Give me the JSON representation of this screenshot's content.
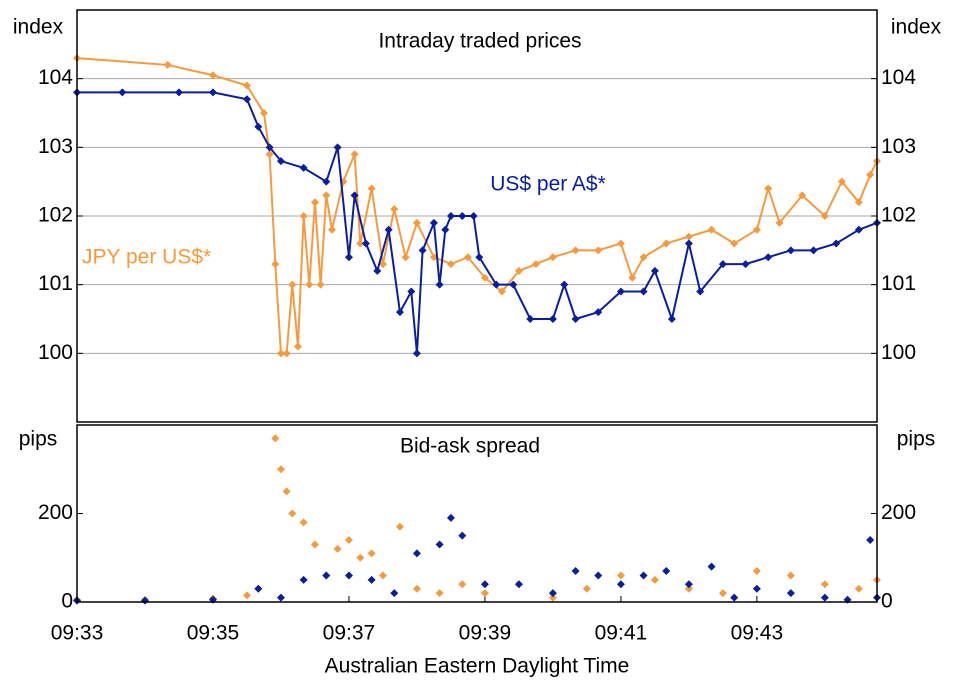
{
  "chart_data": [
    {
      "type": "line",
      "title": "Intraday traded prices",
      "ylabel": "index",
      "xlim": [
        "09:33",
        "09:44:46"
      ],
      "ylim": [
        99,
        105
      ],
      "yticks": [
        100,
        101,
        102,
        103,
        104
      ],
      "grid": true,
      "series": [
        {
          "name": "JPY per US$*",
          "color": "#f79a3e",
          "x": [
            "09:33:00",
            "09:34:20",
            "09:35:00",
            "09:35:30",
            "09:35:45",
            "09:35:50",
            "09:35:55",
            "09:36:00",
            "09:36:05",
            "09:36:10",
            "09:36:15",
            "09:36:20",
            "09:36:25",
            "09:36:30",
            "09:36:35",
            "09:36:40",
            "09:36:45",
            "09:36:55",
            "09:37:05",
            "09:37:10",
            "09:37:20",
            "09:37:30",
            "09:37:40",
            "09:37:50",
            "09:38:00",
            "09:38:15",
            "09:38:30",
            "09:38:45",
            "09:39:00",
            "09:39:15",
            "09:39:30",
            "09:39:45",
            "09:40:00",
            "09:40:20",
            "09:40:40",
            "09:41:00",
            "09:41:10",
            "09:41:20",
            "09:41:40",
            "09:42:00",
            "09:42:20",
            "09:42:40",
            "09:43:00",
            "09:43:10",
            "09:43:20",
            "09:43:40",
            "09:44:00",
            "09:44:15",
            "09:44:30",
            "09:44:40",
            "09:44:46"
          ],
          "values": [
            104.3,
            104.2,
            104.05,
            103.9,
            103.5,
            102.9,
            101.3,
            100.0,
            100.0,
            101.0,
            100.1,
            102.0,
            101.0,
            102.2,
            101.0,
            102.3,
            101.8,
            102.5,
            102.9,
            101.6,
            102.4,
            101.3,
            102.1,
            101.4,
            101.9,
            101.4,
            101.3,
            101.4,
            101.1,
            100.9,
            101.2,
            101.3,
            101.4,
            101.5,
            101.5,
            101.6,
            101.1,
            101.4,
            101.6,
            101.7,
            101.8,
            101.6,
            101.8,
            102.4,
            101.9,
            102.3,
            102.0,
            102.5,
            102.2,
            102.6,
            102.8
          ]
        },
        {
          "name": "US$ per A$*",
          "color": "#0a1f9e",
          "x": [
            "09:33:00",
            "09:33:40",
            "09:34:30",
            "09:35:00",
            "09:35:30",
            "09:35:40",
            "09:35:50",
            "09:36:00",
            "09:36:20",
            "09:36:40",
            "09:36:50",
            "09:37:00",
            "09:37:05",
            "09:37:15",
            "09:37:25",
            "09:37:35",
            "09:37:45",
            "09:37:55",
            "09:38:00",
            "09:38:05",
            "09:38:15",
            "09:38:20",
            "09:38:25",
            "09:38:30",
            "09:38:40",
            "09:38:50",
            "09:38:55",
            "09:39:10",
            "09:39:25",
            "09:39:40",
            "09:40:00",
            "09:40:10",
            "09:40:20",
            "09:40:40",
            "09:41:00",
            "09:41:20",
            "09:41:30",
            "09:41:45",
            "09:42:00",
            "09:42:10",
            "09:42:30",
            "09:42:50",
            "09:43:10",
            "09:43:30",
            "09:43:50",
            "09:44:10",
            "09:44:30",
            "09:44:46"
          ],
          "values": [
            103.8,
            103.8,
            103.8,
            103.8,
            103.7,
            103.3,
            103.0,
            102.8,
            102.7,
            102.5,
            103.0,
            101.4,
            102.3,
            101.6,
            101.2,
            101.8,
            100.6,
            100.9,
            100.0,
            101.5,
            101.9,
            101.0,
            101.8,
            102.0,
            102.0,
            102.0,
            101.4,
            101.0,
            101.0,
            100.5,
            100.5,
            101.0,
            100.5,
            100.6,
            100.9,
            100.9,
            101.2,
            100.5,
            101.6,
            100.9,
            101.3,
            101.3,
            101.4,
            101.5,
            101.5,
            101.6,
            101.8,
            101.9
          ]
        }
      ]
    },
    {
      "type": "scatter",
      "title": "Bid-ask spread",
      "ylabel": "pips",
      "xlabel": "Australian Eastern Daylight Time",
      "xlim": [
        "09:33",
        "09:44:46"
      ],
      "xticks": [
        "09:33",
        "09:35",
        "09:37",
        "09:39",
        "09:41",
        "09:43"
      ],
      "ylim": [
        0,
        400
      ],
      "yticks": [
        0,
        200
      ],
      "series": [
        {
          "name": "JPY per US$*",
          "color": "#f79a3e",
          "x": [
            "09:33:00",
            "09:34:00",
            "09:35:00",
            "09:35:30",
            "09:35:55",
            "09:36:00",
            "09:36:05",
            "09:36:10",
            "09:36:20",
            "09:36:30",
            "09:36:40",
            "09:36:50",
            "09:37:00",
            "09:37:10",
            "09:37:20",
            "09:37:30",
            "09:37:45",
            "09:38:00",
            "09:38:20",
            "09:38:40",
            "09:39:00",
            "09:39:30",
            "09:40:00",
            "09:40:30",
            "09:41:00",
            "09:41:30",
            "09:42:00",
            "09:42:30",
            "09:43:00",
            "09:43:30",
            "09:44:00",
            "09:44:30",
            "09:44:46"
          ],
          "values": [
            5,
            5,
            8,
            15,
            370,
            300,
            250,
            200,
            180,
            130,
            60,
            120,
            140,
            100,
            110,
            60,
            170,
            30,
            20,
            40,
            20,
            40,
            10,
            30,
            60,
            50,
            30,
            20,
            70,
            60,
            40,
            30,
            50
          ]
        },
        {
          "name": "US$ per A$*",
          "color": "#0a1f9e",
          "x": [
            "09:33:00",
            "09:34:00",
            "09:35:00",
            "09:35:40",
            "09:36:00",
            "09:36:20",
            "09:36:40",
            "09:37:00",
            "09:37:20",
            "09:37:40",
            "09:38:00",
            "09:38:20",
            "09:38:30",
            "09:38:40",
            "09:39:00",
            "09:39:30",
            "09:40:00",
            "09:40:20",
            "09:40:40",
            "09:41:00",
            "09:41:20",
            "09:41:40",
            "09:42:00",
            "09:42:20",
            "09:42:40",
            "09:43:00",
            "09:43:30",
            "09:44:00",
            "09:44:20",
            "09:44:40",
            "09:44:46"
          ],
          "values": [
            3,
            3,
            5,
            30,
            10,
            50,
            60,
            60,
            50,
            20,
            110,
            130,
            190,
            150,
            40,
            40,
            20,
            70,
            60,
            40,
            60,
            70,
            40,
            80,
            10,
            30,
            20,
            10,
            5,
            140,
            10
          ]
        }
      ]
    }
  ]
}
